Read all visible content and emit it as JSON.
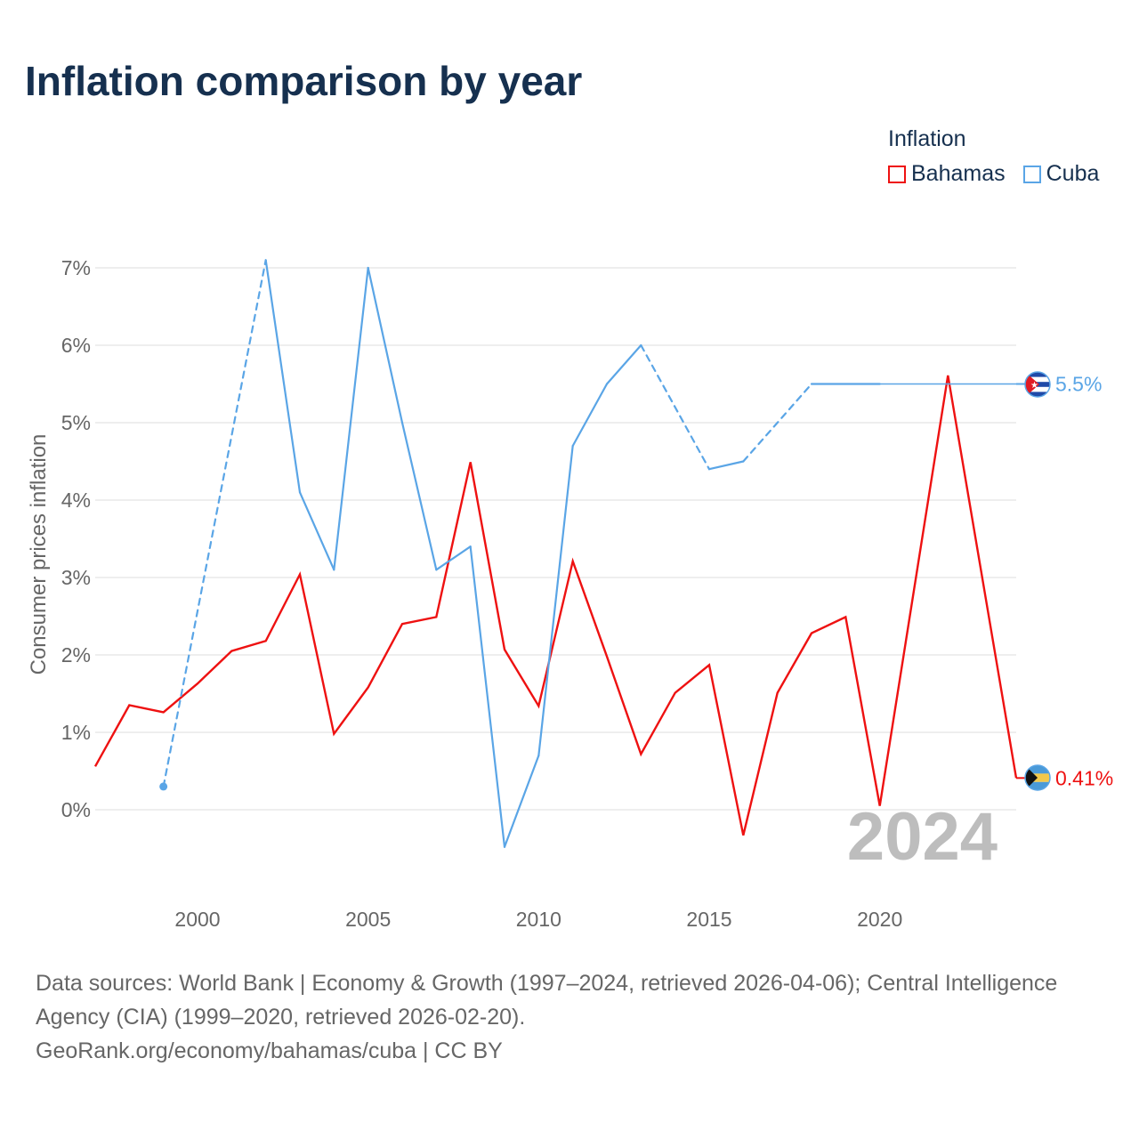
{
  "title": "Inflation comparison by year",
  "legend": {
    "title": "Inflation",
    "items": [
      {
        "label": "Bahamas",
        "color": "#ee1111"
      },
      {
        "label": "Cuba",
        "color": "#5aa5e6"
      }
    ]
  },
  "chart_data": {
    "type": "line",
    "title": "Inflation comparison by year",
    "ylabel": "Consumer prices inflation",
    "xlabel": "",
    "xlim": [
      1997,
      2024
    ],
    "ylim": [
      -1.1,
      7.6
    ],
    "x_ticks": [
      2000,
      2005,
      2010,
      2015,
      2020
    ],
    "y_ticks": [
      0,
      1,
      2,
      3,
      4,
      5,
      6,
      7
    ],
    "y_tick_labels": [
      "0%",
      "1%",
      "2%",
      "3%",
      "4%",
      "5%",
      "6%",
      "7%"
    ],
    "grid": true,
    "year_watermark": "2024",
    "series": [
      {
        "name": "Bahamas",
        "color": "#ee1111",
        "end_label": "0.41%",
        "end_value": 0.41,
        "points": [
          [
            1997,
            0.56
          ],
          [
            1998,
            1.35
          ],
          [
            1999,
            1.26
          ],
          [
            2000,
            1.63
          ],
          [
            2001,
            2.05
          ],
          [
            2002,
            2.18
          ],
          [
            2003,
            3.04
          ],
          [
            2004,
            0.98
          ],
          [
            2005,
            1.58
          ],
          [
            2006,
            2.4
          ],
          [
            2007,
            2.49
          ],
          [
            2008,
            4.49
          ],
          [
            2009,
            2.07
          ],
          [
            2010,
            1.34
          ],
          [
            2011,
            3.21
          ],
          [
            2012,
            1.98
          ],
          [
            2013,
            0.72
          ],
          [
            2014,
            1.51
          ],
          [
            2015,
            1.87
          ],
          [
            2016,
            -0.33
          ],
          [
            2017,
            1.51
          ],
          [
            2018,
            2.28
          ],
          [
            2019,
            2.49
          ],
          [
            2020,
            0.05
          ],
          [
            2022,
            5.61
          ],
          [
            2024,
            0.41
          ]
        ]
      },
      {
        "name": "Cuba",
        "color": "#5aa5e6",
        "end_label": "5.5%",
        "end_value": 5.5,
        "points": [
          [
            1999,
            0.3
          ],
          [
            2002,
            7.1
          ],
          [
            2003,
            4.1
          ],
          [
            2004,
            3.1
          ],
          [
            2005,
            7.0
          ],
          [
            2006,
            5.0
          ],
          [
            2007,
            3.1
          ],
          [
            2008,
            3.4
          ],
          [
            2009,
            -0.48
          ],
          [
            2010,
            0.7
          ],
          [
            2011,
            4.7
          ],
          [
            2012,
            5.5
          ],
          [
            2013,
            6.0
          ],
          [
            2015,
            4.4
          ],
          [
            2016,
            4.5
          ],
          [
            2018,
            5.5
          ],
          [
            2020,
            5.5
          ]
        ],
        "dashed_segments": [
          [
            1999,
            2002
          ],
          [
            2013,
            2015
          ],
          [
            2016,
            2018
          ]
        ],
        "extension_to": 2024
      }
    ]
  },
  "footer": {
    "sources": "Data sources: World Bank | Economy & Growth (1997–2024, retrieved 2026-04-06); Central Intelligence Agency (CIA) (1999–2020, retrieved 2026-02-20).",
    "credit": "GeoRank.org/economy/bahamas/cuba | CC BY"
  }
}
